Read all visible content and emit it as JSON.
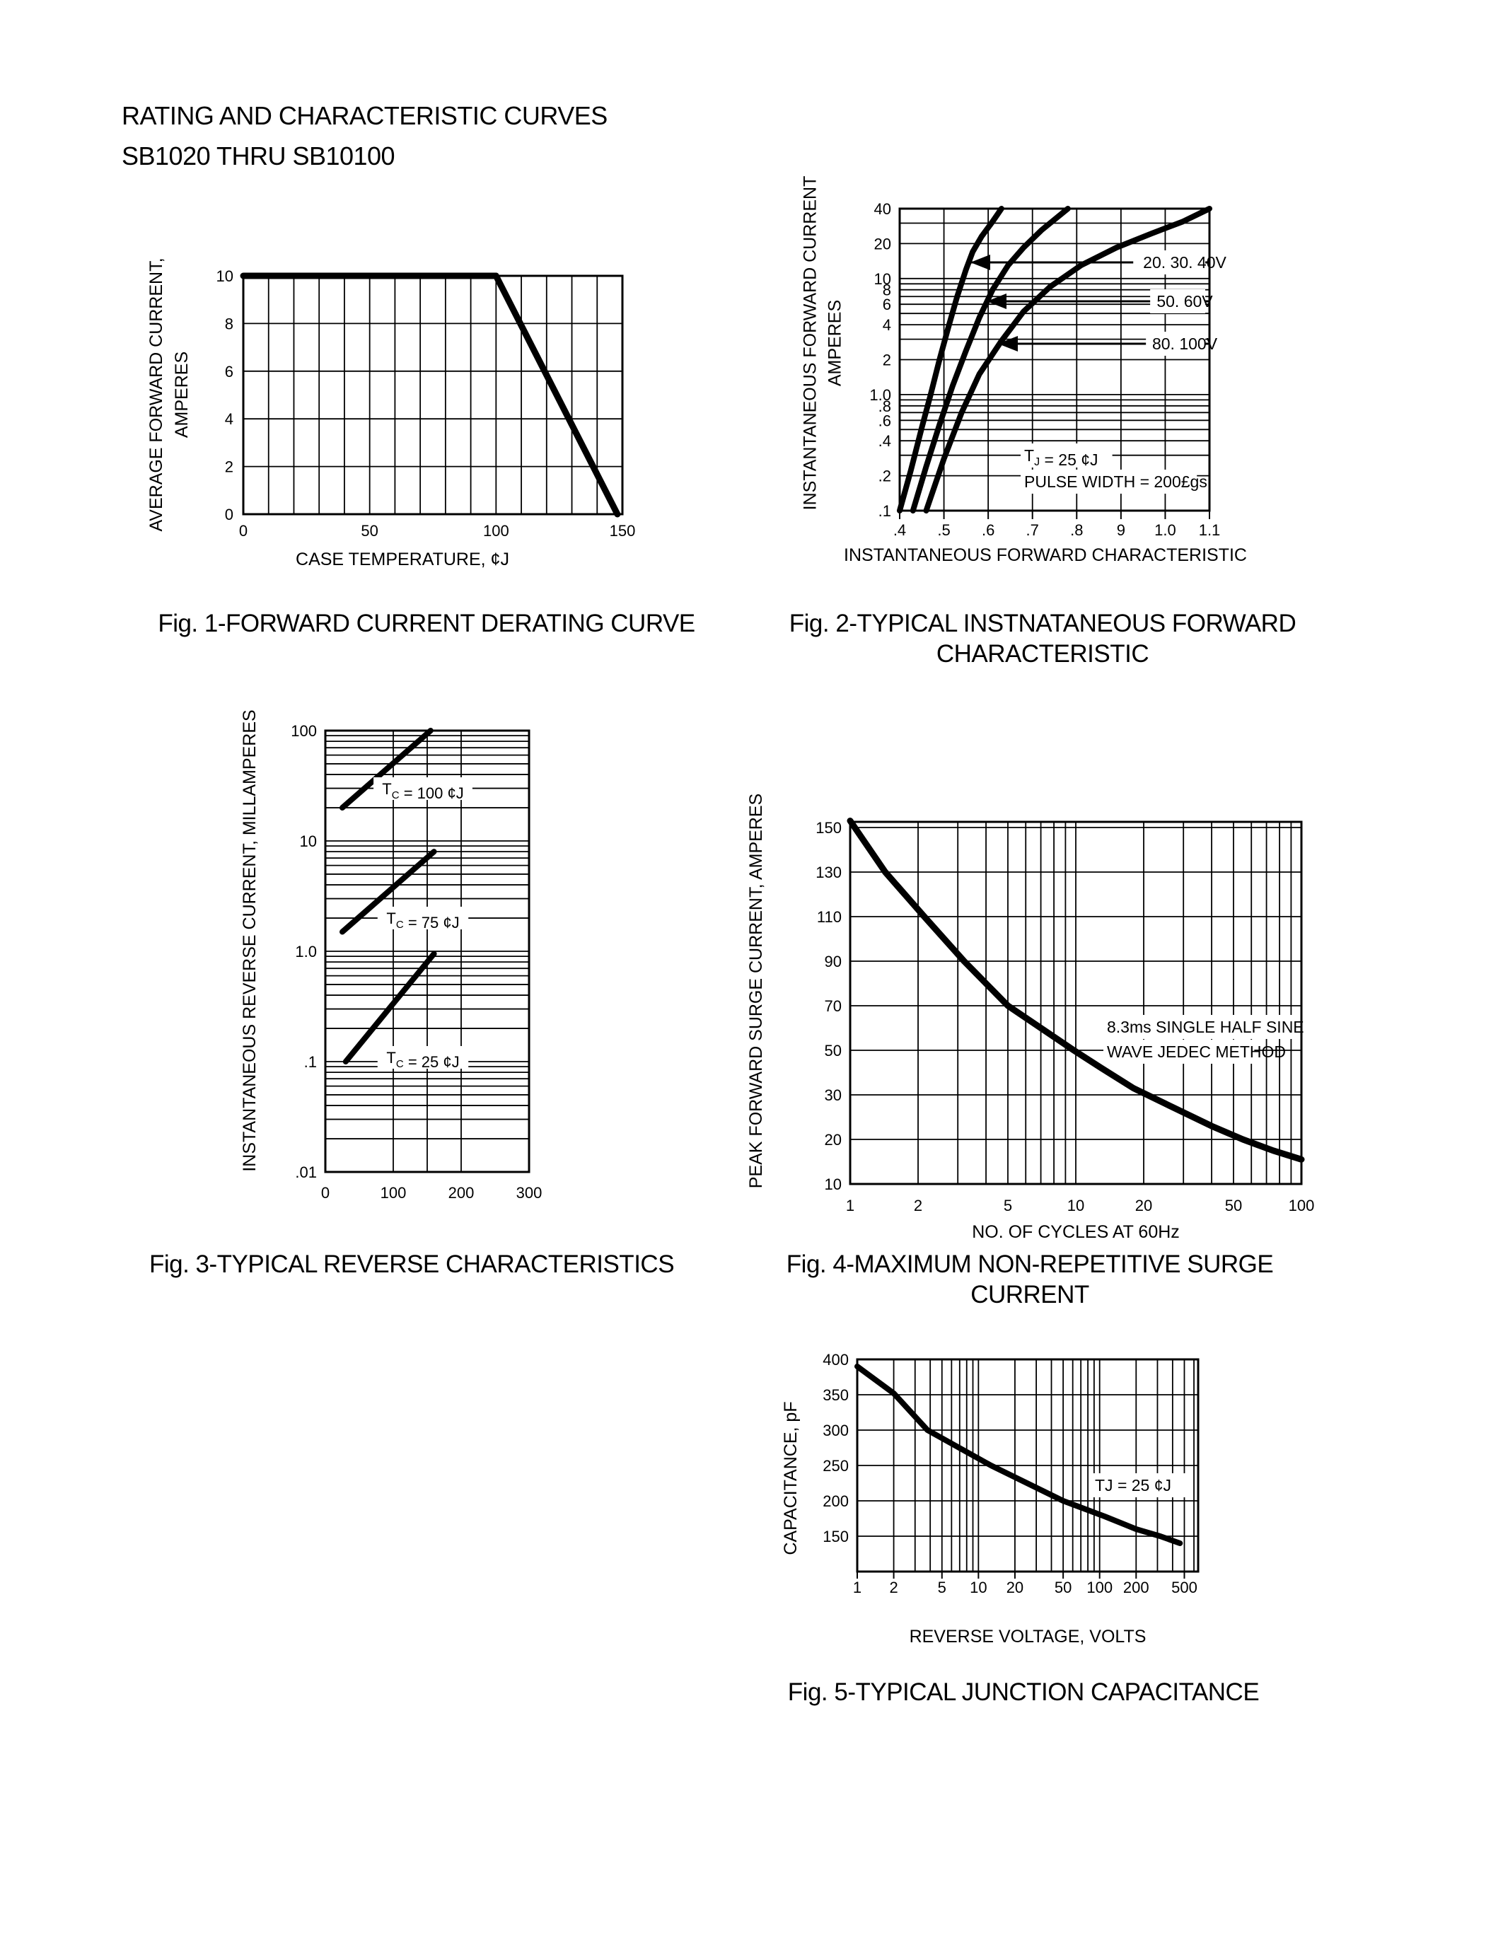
{
  "page": {
    "title_line1": "RATING AND CHARACTERISTIC CURVES",
    "title_line2": "SB1020 THRU SB10100"
  },
  "chart_data": [
    {
      "id": "fig1",
      "type": "line",
      "title": "Fig. 1-FORWARD CURRENT DERATING CURVE",
      "xlabel": "CASE TEMPERATURE, ¢J",
      "ylabel": [
        "AVERAGE FORWARD CURRENT,",
        "AMPERES"
      ],
      "x_axis": {
        "scale": "linear",
        "min": 0,
        "max": 150,
        "tick_values": [
          0,
          50,
          100,
          150
        ],
        "tick_labels": [
          "0",
          "50",
          "100",
          "150"
        ],
        "grid": [
          10,
          20,
          30,
          40,
          50,
          60,
          70,
          80,
          90,
          100,
          110,
          120,
          130,
          140
        ]
      },
      "y_axis": {
        "scale": "linear",
        "min": 0,
        "max": 10,
        "tick_values": [
          10,
          8,
          6,
          4,
          2,
          0
        ],
        "tick_labels": [
          "10",
          "8",
          "6",
          "4",
          "2",
          "0"
        ],
        "grid": [
          2,
          4,
          6,
          8
        ]
      },
      "series": [
        {
          "name": "derating-curve",
          "width": 9,
          "points": [
            [
              0,
              10
            ],
            [
              100,
              10
            ],
            [
              148,
              0
            ]
          ]
        }
      ],
      "annotations": [],
      "legend": []
    },
    {
      "id": "fig2",
      "type": "line",
      "title": "Fig. 2-TYPICAL INSTNATANEOUS FORWARD\nCHARACTERISTIC",
      "xlabel": "INSTANTANEOUS FORWARD CHARACTERISTIC",
      "ylabel": [
        "INSTANTANEOUS FORWARD CURRENT",
        "AMPERES"
      ],
      "x_axis": {
        "scale": "linear",
        "min": 0.4,
        "max": 1.1,
        "tick_values": [
          0.4,
          0.5,
          0.6,
          0.7,
          0.8,
          0.9,
          1.0,
          1.1
        ],
        "tick_labels": [
          ".4",
          ".5",
          ".6",
          ".7",
          ".8",
          "9",
          "1.0",
          "1.1"
        ],
        "grid": [
          0.5,
          0.6,
          0.7,
          0.8,
          0.9,
          1.0
        ]
      },
      "y_axis": {
        "scale": "log",
        "min": 0.1,
        "max": 40,
        "tick_values": [
          40,
          20,
          10,
          8,
          6,
          4,
          2,
          1.0,
          0.8,
          0.6,
          0.4,
          0.2,
          0.1
        ],
        "tick_labels": [
          "40",
          "20",
          "10",
          "8",
          "6",
          "4",
          "2",
          "1.0",
          ".8",
          ".6",
          ".4",
          ".2",
          ".1"
        ],
        "grid": [
          30,
          20,
          10,
          9,
          8,
          7,
          6,
          5,
          4,
          3,
          2,
          1,
          0.9,
          0.8,
          0.7,
          0.6,
          0.5,
          0.4,
          0.3,
          0.2
        ]
      },
      "series": [
        {
          "name": "20. 30. 40V",
          "width": 8,
          "points": [
            [
              0.4,
              0.1
            ],
            [
              0.425,
              0.22
            ],
            [
              0.45,
              0.52
            ],
            [
              0.47,
              1.0
            ],
            [
              0.49,
              2.0
            ],
            [
              0.51,
              3.8
            ],
            [
              0.53,
              7
            ],
            [
              0.55,
              12
            ],
            [
              0.565,
              17
            ],
            [
              0.585,
              23
            ],
            [
              0.61,
              31
            ],
            [
              0.63,
              40
            ]
          ]
        },
        {
          "name": "50. 60V",
          "width": 8,
          "points": [
            [
              0.43,
              0.1
            ],
            [
              0.46,
              0.24
            ],
            [
              0.49,
              0.55
            ],
            [
              0.52,
              1.2
            ],
            [
              0.55,
              2.4
            ],
            [
              0.58,
              4.6
            ],
            [
              0.61,
              8
            ],
            [
              0.645,
              13
            ],
            [
              0.68,
              18.5
            ],
            [
              0.72,
              26
            ],
            [
              0.78,
              40
            ]
          ]
        },
        {
          "name": "80. 100V",
          "width": 8,
          "points": [
            [
              0.46,
              0.1
            ],
            [
              0.5,
              0.28
            ],
            [
              0.54,
              0.7
            ],
            [
              0.58,
              1.5
            ],
            [
              0.63,
              2.9
            ],
            [
              0.68,
              5.2
            ],
            [
              0.74,
              8.5
            ],
            [
              0.81,
              13
            ],
            [
              0.89,
              18.5
            ],
            [
              0.97,
              24.5
            ],
            [
              1.04,
              31
            ],
            [
              1.1,
              40
            ]
          ]
        }
      ],
      "annotations": [
        {
          "text": "T_{J} = 25 ¢J"
        },
        {
          "text": "PULSE WIDTH = 200£gs"
        }
      ],
      "legend": [
        "20. 30. 40V",
        "50. 60V",
        "80. 100V"
      ]
    },
    {
      "id": "fig3",
      "type": "line",
      "title": "Fig. 3-TYPICAL REVERSE CHARACTERISTICS",
      "xlabel": "",
      "ylabel": [
        "INSTANTANEOUS REVERSE CURRENT, MILLAMPERES"
      ],
      "x_axis": {
        "scale": "linear",
        "min": 0,
        "max": 300,
        "tick_values": [
          0,
          100,
          200,
          300
        ],
        "tick_labels": [
          "0",
          "100",
          "200",
          "300"
        ],
        "grid": [
          100,
          150,
          200
        ]
      },
      "y_axis": {
        "scale": "log",
        "min": 0.01,
        "max": 100,
        "tick_values": [
          100,
          10,
          1.0,
          0.1,
          0.01
        ],
        "tick_labels": [
          "100",
          "10",
          "1.0",
          ".1",
          ".01"
        ],
        "grid": [
          0.02,
          0.03,
          0.04,
          0.05,
          0.06,
          0.07,
          0.08,
          0.09,
          0.1,
          0.2,
          0.3,
          0.4,
          0.5,
          0.6,
          0.7,
          0.8,
          0.9,
          1,
          2,
          3,
          4,
          5,
          6,
          7,
          8,
          9,
          10,
          20,
          30,
          40,
          50,
          60,
          70,
          80,
          90
        ]
      },
      "series": [
        {
          "name": "TC = 100",
          "width": 8,
          "points": [
            [
              25,
              20
            ],
            [
              155,
              100
            ]
          ]
        },
        {
          "name": "TC = 75",
          "width": 8,
          "points": [
            [
              25,
              1.5
            ],
            [
              160,
              8
            ]
          ]
        },
        {
          "name": "TC = 25",
          "width": 8,
          "points": [
            [
              30,
              0.1
            ],
            [
              160,
              0.95
            ]
          ]
        }
      ],
      "curve_labels": [
        "T_{C} = 100 ¢J",
        "T_{C} = 75 ¢J",
        "T_{C} = 25 ¢J"
      ],
      "annotations": [],
      "legend": []
    },
    {
      "id": "fig4",
      "type": "line",
      "title": "Fig. 4-MAXIMUM NON-REPETITIVE SURGE CURRENT",
      "xlabel": "NO. OF CYCLES AT 60Hz",
      "ylabel": [
        "PEAK FORWARD SURGE CURRENT, AMPERES"
      ],
      "x_axis": {
        "scale": "log",
        "min": 1,
        "max": 100,
        "tick_values": [
          1,
          2,
          5,
          10,
          20,
          50,
          100
        ],
        "tick_labels": [
          "1",
          "2",
          "5",
          "10",
          "20",
          "50",
          "100"
        ],
        "grid": [
          2,
          3,
          4,
          5,
          6,
          7,
          8,
          9,
          10,
          20,
          30,
          40,
          50,
          60,
          70,
          80,
          90
        ]
      },
      "y_axis": {
        "scale": "ordinal",
        "tick_values": [
          150,
          130,
          110,
          90,
          70,
          50,
          30,
          20,
          10
        ],
        "tick_labels": [
          "150",
          "130",
          "110",
          "90",
          "70",
          "50",
          "30",
          "20",
          "10"
        ],
        "grid": [
          150,
          130,
          110,
          90,
          70,
          50,
          30,
          20
        ]
      },
      "series": [
        {
          "name": "surge-current",
          "width": 9,
          "points": [
            [
              1,
              153
            ],
            [
              1.43,
              130
            ],
            [
              2.13,
              110
            ],
            [
              3.2,
              90
            ],
            [
              5,
              70
            ],
            [
              7,
              60
            ],
            [
              9.8,
              50
            ],
            [
              13,
              42
            ],
            [
              18,
              33
            ],
            [
              25,
              28
            ],
            [
              40,
              23
            ],
            [
              55,
              20
            ],
            [
              75,
              17.5
            ],
            [
              100,
              15.5
            ]
          ]
        }
      ],
      "annotations": [
        {
          "text": "8.3ms SINGLE HALF SINE"
        },
        {
          "text": "WAVE JEDEC METHOD"
        }
      ],
      "legend": []
    },
    {
      "id": "fig5",
      "type": "line",
      "title": "Fig. 5-TYPICAL JUNCTION CAPACITANCE",
      "xlabel": "REVERSE VOLTAGE, VOLTS",
      "ylabel": [
        "CAPACITANCE, pF"
      ],
      "x_axis": {
        "scale": "log",
        "min": 1,
        "max": 650,
        "tick_values": [
          1,
          2,
          5,
          10,
          20,
          50,
          100,
          200,
          500
        ],
        "tick_labels": [
          "1",
          "2",
          "5",
          "10",
          "20",
          "50",
          "100",
          "200",
          "500"
        ],
        "grid": [
          2,
          3,
          4,
          5,
          6,
          7,
          8,
          9,
          10,
          20,
          30,
          40,
          50,
          60,
          70,
          80,
          90,
          100,
          200,
          300,
          400,
          500,
          600
        ]
      },
      "y_axis": {
        "scale": "linear",
        "min": 100,
        "max": 400,
        "tick_values": [
          400,
          350,
          300,
          250,
          200,
          150
        ],
        "tick_labels": [
          "400",
          "350",
          "300",
          "250",
          "200",
          "150"
        ],
        "grid": [
          150,
          200,
          250,
          300,
          350
        ]
      },
      "series": [
        {
          "name": "junction-capacitance",
          "width": 8,
          "points": [
            [
              1,
              390
            ],
            [
              2,
              352
            ],
            [
              3.8,
              300
            ],
            [
              12.7,
              250
            ],
            [
              50,
              200
            ],
            [
              110,
              178
            ],
            [
              200,
              160
            ],
            [
              316,
              150
            ],
            [
              460,
              140
            ]
          ]
        }
      ],
      "annotations": [
        {
          "text": "TJ = 25  ¢J"
        }
      ],
      "legend": []
    }
  ]
}
